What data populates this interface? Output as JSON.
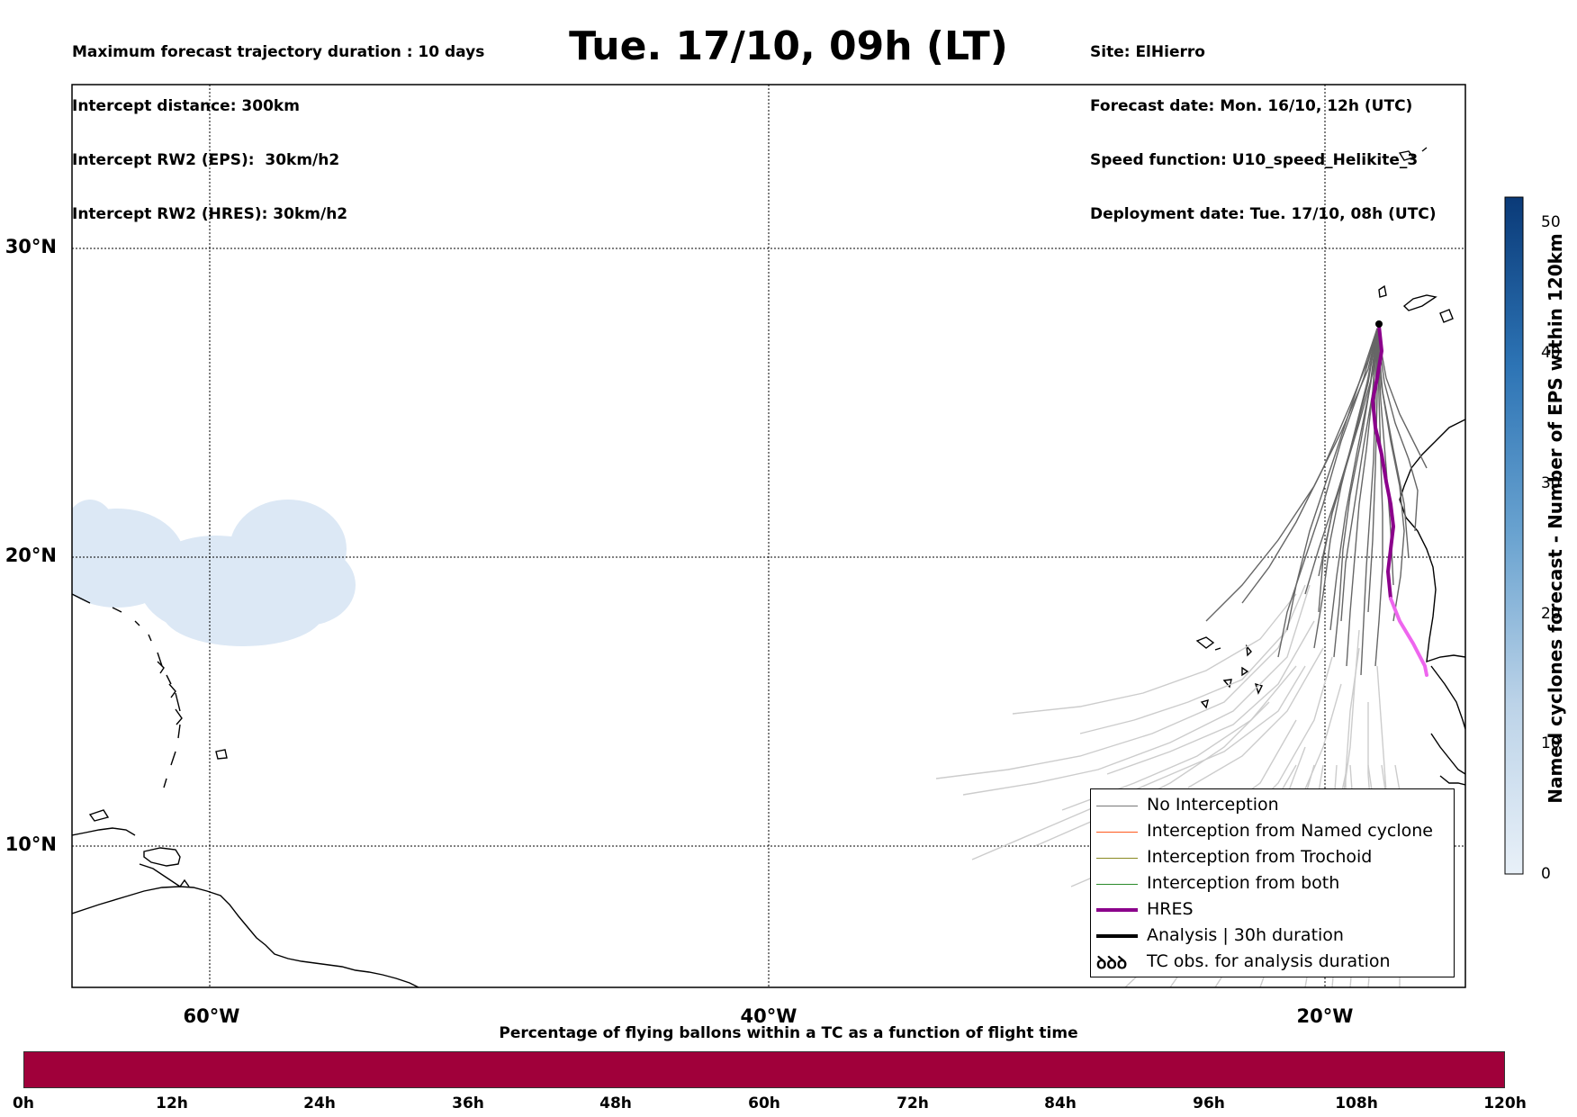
{
  "header_left": [
    "Maximum forecast trajectory duration : 10 days",
    "Intercept distance: 300km",
    "Intercept RW2 (EPS):  30km/h2",
    "Intercept RW2 (HRES): 30km/h2"
  ],
  "title": "Tue. 17/10, 09h (LT)",
  "header_right": [
    "Site: ElHierro",
    "Forecast date: Mon. 16/10, 12h (UTC)",
    "Speed function: U10_speed_Helikite_3",
    "Deployment date: Tue. 17/10, 08h (UTC)"
  ],
  "lat_labels": [
    "30°N",
    "20°N",
    "10°N"
  ],
  "lon_labels": [
    "60°W",
    "40°W",
    "20°W"
  ],
  "legend": [
    {
      "label": "No Interception",
      "color": "#777777",
      "kind": "thin"
    },
    {
      "label": "Interception from Named cyclone",
      "color": "#ff5a1e",
      "kind": "thin"
    },
    {
      "label": "Interception from Trochoid",
      "color": "#8a8a22",
      "kind": "thin"
    },
    {
      "label": "Interception from both",
      "color": "#2a8a2a",
      "kind": "thin"
    },
    {
      "label": "HRES",
      "color": "#8b008b",
      "kind": "thick"
    },
    {
      "label": "Analysis | 30h duration",
      "color": "#000000",
      "kind": "thick"
    },
    {
      "label": "TC obs. for analysis duration",
      "color": "#000000",
      "kind": "symbol",
      "symbol": "ꝺꝺꝺ"
    }
  ],
  "colorbar": {
    "title": "Named cyclones forecast - Number of EPS within 120km",
    "ticks": [
      "0",
      "10",
      "20",
      "30",
      "40",
      "50"
    ],
    "range": [
      0,
      52
    ]
  },
  "bottom_bar": {
    "title": "Percentage of flying ballons within a TC as a function of flight time",
    "color": "#a0003a",
    "ticks": [
      "0h",
      "12h",
      "24h",
      "36h",
      "48h",
      "60h",
      "72h",
      "84h",
      "96h",
      "108h",
      "120h"
    ]
  },
  "colors": {
    "hres_early": "#8b008b",
    "hres_late": "#ee66ee",
    "eps_early": "#666666",
    "eps_late": "#cccccc",
    "cyclone_blob": "#dce8f5"
  }
}
